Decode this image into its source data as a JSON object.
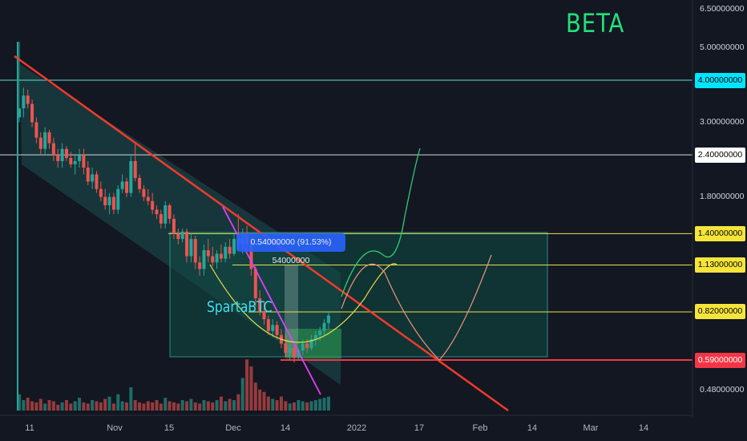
{
  "header": {
    "symbol": "BETA"
  },
  "annotations": {
    "author": "SpartaBTC",
    "measure": "0.54000000 (91.53%) 54000000"
  },
  "colors": {
    "background": "#131722",
    "up": "#26a69a",
    "down": "#ef5350",
    "trendline": "#ef3b2c",
    "channel_fill": "#1f6f6a",
    "pink_line": "#e040fb",
    "level_line": "#e8e04a",
    "projection_green": "#2ecc71",
    "projection_orange": "#e8967a"
  },
  "chart_data": {
    "type": "candlestick",
    "symbol": "BETA",
    "y_scale": "log",
    "ylim": [
      0.42,
      6.8
    ],
    "y_ticks": [
      "6.50000000",
      "5.00000000",
      "3.00000000",
      "1.80000000",
      "0.48000000"
    ],
    "x_ticks": [
      "11",
      "Nov",
      "15",
      "Dec",
      "14",
      "2022",
      "17",
      "Feb",
      "14",
      "Mar",
      "14"
    ],
    "price_levels": [
      {
        "label": "4.00000000",
        "value": 4.0,
        "badge_bg": "#00e5ff",
        "badge_fg": "#000000",
        "line": "#5ee0d0"
      },
      {
        "label": "2.40000000",
        "value": 2.4,
        "badge_bg": "#ffffff",
        "badge_fg": "#000000",
        "line": "#d8d8d8"
      },
      {
        "label": "1.40000000",
        "value": 1.4,
        "badge_bg": "#f5e53b",
        "badge_fg": "#000000",
        "line": "#e8e04a"
      },
      {
        "label": "1.13000000",
        "value": 1.13,
        "badge_bg": "#f5e53b",
        "badge_fg": "#000000",
        "line": "#e8e04a"
      },
      {
        "label": "0.82000000",
        "value": 0.82,
        "badge_bg": "#f5e53b",
        "badge_fg": "#000000",
        "line": "#e8e04a"
      },
      {
        "label": "0.59000000",
        "value": 0.59,
        "badge_bg": "#f23645",
        "badge_fg": "#ffffff",
        "line": "#f23645"
      }
    ],
    "candles": [
      {
        "o": 3.1,
        "h": 5.2,
        "l": 3.0,
        "c": 3.3
      },
      {
        "o": 3.3,
        "h": 3.8,
        "l": 3.1,
        "c": 3.6
      },
      {
        "o": 3.6,
        "h": 3.75,
        "l": 3.3,
        "c": 3.4
      },
      {
        "o": 3.4,
        "h": 3.5,
        "l": 2.9,
        "c": 3.0
      },
      {
        "o": 3.0,
        "h": 3.1,
        "l": 2.6,
        "c": 2.7
      },
      {
        "o": 2.7,
        "h": 2.8,
        "l": 2.4,
        "c": 2.5
      },
      {
        "o": 2.5,
        "h": 2.9,
        "l": 2.4,
        "c": 2.8
      },
      {
        "o": 2.8,
        "h": 2.85,
        "l": 2.5,
        "c": 2.6
      },
      {
        "o": 2.6,
        "h": 2.7,
        "l": 2.3,
        "c": 2.4
      },
      {
        "o": 2.4,
        "h": 2.5,
        "l": 2.2,
        "c": 2.3
      },
      {
        "o": 2.3,
        "h": 2.6,
        "l": 2.2,
        "c": 2.5
      },
      {
        "o": 2.5,
        "h": 2.55,
        "l": 2.3,
        "c": 2.35
      },
      {
        "o": 2.35,
        "h": 2.45,
        "l": 2.2,
        "c": 2.25
      },
      {
        "o": 2.25,
        "h": 2.4,
        "l": 2.1,
        "c": 2.3
      },
      {
        "o": 2.3,
        "h": 2.5,
        "l": 2.2,
        "c": 2.4
      },
      {
        "o": 2.4,
        "h": 2.5,
        "l": 2.1,
        "c": 2.2
      },
      {
        "o": 2.2,
        "h": 2.3,
        "l": 1.95,
        "c": 2.0
      },
      {
        "o": 2.0,
        "h": 2.2,
        "l": 1.9,
        "c": 2.1
      },
      {
        "o": 2.1,
        "h": 2.15,
        "l": 1.85,
        "c": 1.9
      },
      {
        "o": 1.9,
        "h": 2.0,
        "l": 1.75,
        "c": 1.8
      },
      {
        "o": 1.8,
        "h": 1.9,
        "l": 1.65,
        "c": 1.7
      },
      {
        "o": 1.7,
        "h": 1.85,
        "l": 1.6,
        "c": 1.8
      },
      {
        "o": 1.8,
        "h": 1.85,
        "l": 1.6,
        "c": 1.65
      },
      {
        "o": 1.65,
        "h": 1.95,
        "l": 1.6,
        "c": 1.9
      },
      {
        "o": 1.9,
        "h": 2.1,
        "l": 1.85,
        "c": 2.0
      },
      {
        "o": 2.0,
        "h": 2.05,
        "l": 1.8,
        "c": 1.85
      },
      {
        "o": 1.85,
        "h": 2.4,
        "l": 1.8,
        "c": 2.3
      },
      {
        "o": 2.3,
        "h": 2.6,
        "l": 2.0,
        "c": 2.05
      },
      {
        "o": 2.05,
        "h": 2.1,
        "l": 1.85,
        "c": 1.9
      },
      {
        "o": 1.9,
        "h": 1.95,
        "l": 1.75,
        "c": 1.8
      },
      {
        "o": 1.8,
        "h": 1.9,
        "l": 1.7,
        "c": 1.75
      },
      {
        "o": 1.75,
        "h": 1.85,
        "l": 1.6,
        "c": 1.65
      },
      {
        "o": 1.65,
        "h": 1.7,
        "l": 1.55,
        "c": 1.6
      },
      {
        "o": 1.6,
        "h": 1.65,
        "l": 1.45,
        "c": 1.5
      },
      {
        "o": 1.5,
        "h": 1.75,
        "l": 1.45,
        "c": 1.7
      },
      {
        "o": 1.7,
        "h": 1.72,
        "l": 1.5,
        "c": 1.55
      },
      {
        "o": 1.55,
        "h": 1.6,
        "l": 1.35,
        "c": 1.4
      },
      {
        "o": 1.4,
        "h": 1.45,
        "l": 1.3,
        "c": 1.35
      },
      {
        "o": 1.35,
        "h": 1.45,
        "l": 1.32,
        "c": 1.42
      },
      {
        "o": 1.42,
        "h": 1.45,
        "l": 1.15,
        "c": 1.2
      },
      {
        "o": 1.2,
        "h": 1.4,
        "l": 1.15,
        "c": 1.35
      },
      {
        "o": 1.35,
        "h": 1.38,
        "l": 1.1,
        "c": 1.15
      },
      {
        "o": 1.15,
        "h": 1.2,
        "l": 1.05,
        "c": 1.1
      },
      {
        "o": 1.1,
        "h": 1.3,
        "l": 1.05,
        "c": 1.25
      },
      {
        "o": 1.25,
        "h": 1.35,
        "l": 1.15,
        "c": 1.2
      },
      {
        "o": 1.2,
        "h": 1.28,
        "l": 1.12,
        "c": 1.15
      },
      {
        "o": 1.15,
        "h": 1.25,
        "l": 1.1,
        "c": 1.22
      },
      {
        "o": 1.22,
        "h": 1.3,
        "l": 1.15,
        "c": 1.18
      },
      {
        "o": 1.18,
        "h": 1.32,
        "l": 1.15,
        "c": 1.28
      },
      {
        "o": 1.28,
        "h": 1.35,
        "l": 1.18,
        "c": 1.22
      },
      {
        "o": 1.22,
        "h": 1.4,
        "l": 1.2,
        "c": 1.35
      },
      {
        "o": 1.35,
        "h": 1.6,
        "l": 1.25,
        "c": 1.3
      },
      {
        "o": 1.3,
        "h": 1.45,
        "l": 1.22,
        "c": 1.4
      },
      {
        "o": 1.4,
        "h": 1.48,
        "l": 1.25,
        "c": 1.3
      },
      {
        "o": 1.3,
        "h": 1.35,
        "l": 1.05,
        "c": 1.1
      },
      {
        "o": 1.1,
        "h": 1.12,
        "l": 0.85,
        "c": 0.9
      },
      {
        "o": 0.9,
        "h": 0.95,
        "l": 0.8,
        "c": 0.82
      },
      {
        "o": 0.82,
        "h": 0.88,
        "l": 0.75,
        "c": 0.78
      },
      {
        "o": 0.78,
        "h": 0.8,
        "l": 0.7,
        "c": 0.72
      },
      {
        "o": 0.72,
        "h": 0.78,
        "l": 0.69,
        "c": 0.75
      },
      {
        "o": 0.75,
        "h": 0.77,
        "l": 0.68,
        "c": 0.7
      },
      {
        "o": 0.7,
        "h": 0.73,
        "l": 0.64,
        "c": 0.66
      },
      {
        "o": 0.66,
        "h": 0.7,
        "l": 0.6,
        "c": 0.62
      },
      {
        "o": 0.62,
        "h": 0.66,
        "l": 0.59,
        "c": 0.64
      },
      {
        "o": 0.64,
        "h": 0.66,
        "l": 0.58,
        "c": 0.6
      },
      {
        "o": 0.6,
        "h": 0.64,
        "l": 0.59,
        "c": 0.63
      },
      {
        "o": 0.63,
        "h": 0.68,
        "l": 0.61,
        "c": 0.66
      },
      {
        "o": 0.66,
        "h": 0.68,
        "l": 0.62,
        "c": 0.64
      },
      {
        "o": 0.64,
        "h": 0.7,
        "l": 0.63,
        "c": 0.68
      },
      {
        "o": 0.68,
        "h": 0.72,
        "l": 0.65,
        "c": 0.7
      },
      {
        "o": 0.7,
        "h": 0.74,
        "l": 0.67,
        "c": 0.72
      },
      {
        "o": 0.72,
        "h": 0.78,
        "l": 0.7,
        "c": 0.76
      },
      {
        "o": 0.76,
        "h": 0.82,
        "l": 0.73,
        "c": 0.8
      }
    ],
    "volume": [
      14,
      9,
      11,
      8,
      7,
      10,
      6,
      9,
      8,
      5,
      7,
      9,
      6,
      8,
      11,
      7,
      6,
      9,
      8,
      7,
      10,
      12,
      6,
      14,
      8,
      7,
      20,
      9,
      7,
      6,
      8,
      7,
      9,
      6,
      11,
      8,
      7,
      6,
      9,
      8,
      10,
      7,
      6,
      9,
      8,
      7,
      9,
      12,
      8,
      10,
      9,
      14,
      28,
      44,
      38,
      24,
      18,
      16,
      12,
      10,
      9,
      12,
      8,
      6,
      7,
      9,
      8,
      7,
      8,
      9,
      10,
      11,
      12
    ]
  }
}
